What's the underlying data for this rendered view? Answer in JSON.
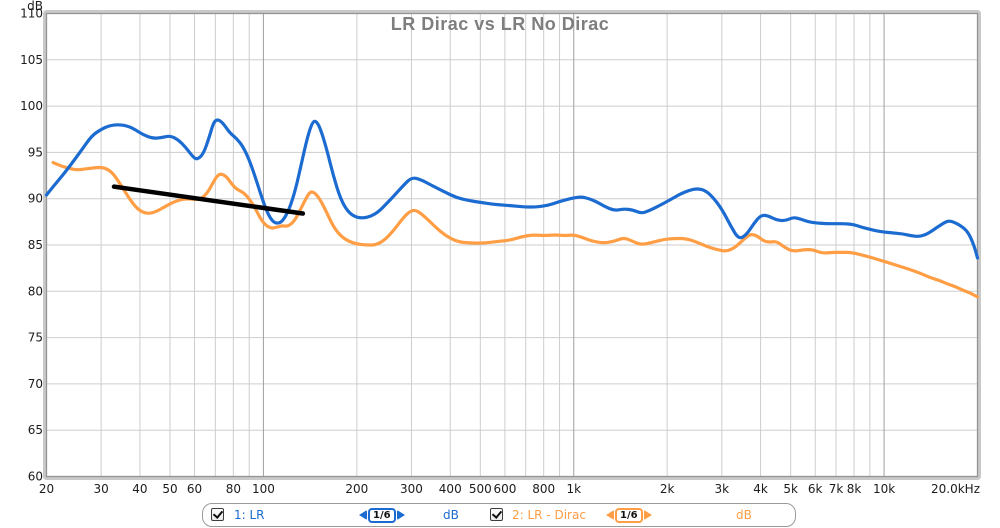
{
  "title": "LR Dirac vs LR No Dirac",
  "legend": {
    "items": [
      {
        "label": "1: LR",
        "smoothing": "1/6",
        "unit": "dB",
        "color": "#1B6BD0",
        "checked": true
      },
      {
        "label": "2: LR - Dirac",
        "smoothing": "1/6",
        "unit": "dB",
        "color": "#FF9E45",
        "checked": true
      }
    ]
  },
  "chart_data": {
    "type": "line",
    "title": "LR Dirac vs LR No Dirac",
    "x_scale": "log",
    "x_range": [
      20,
      20000
    ],
    "y_range": [
      60,
      110
    ],
    "y_unit_label": "dB",
    "grid": true,
    "legend_position": "bottom",
    "x_ticks": [
      {
        "f": 20,
        "label": "20"
      },
      {
        "f": 30,
        "label": "30"
      },
      {
        "f": 40,
        "label": "40"
      },
      {
        "f": 50,
        "label": "50"
      },
      {
        "f": 60,
        "label": "60"
      },
      {
        "f": 70,
        "label": ""
      },
      {
        "f": 80,
        "label": "80"
      },
      {
        "f": 90,
        "label": ""
      },
      {
        "f": 100,
        "label": "100",
        "major": true
      },
      {
        "f": 200,
        "label": "200"
      },
      {
        "f": 300,
        "label": "300"
      },
      {
        "f": 400,
        "label": "400"
      },
      {
        "f": 500,
        "label": "500"
      },
      {
        "f": 600,
        "label": "600"
      },
      {
        "f": 700,
        "label": ""
      },
      {
        "f": 800,
        "label": "800"
      },
      {
        "f": 900,
        "label": ""
      },
      {
        "f": 1000,
        "label": "1k",
        "major": true
      },
      {
        "f": 2000,
        "label": "2k"
      },
      {
        "f": 3000,
        "label": "3k"
      },
      {
        "f": 4000,
        "label": "4k"
      },
      {
        "f": 5000,
        "label": "5k"
      },
      {
        "f": 6000,
        "label": "6k"
      },
      {
        "f": 7000,
        "label": "7k"
      },
      {
        "f": 8000,
        "label": "8k"
      },
      {
        "f": 9000,
        "label": ""
      },
      {
        "f": 10000,
        "label": "10k",
        "major": true
      },
      {
        "f": 20000,
        "label": "20.0kHz"
      }
    ],
    "y_ticks": [
      {
        "v": 110,
        "label": "110"
      },
      {
        "v": 105,
        "label": "105"
      },
      {
        "v": 100,
        "label": "100"
      },
      {
        "v": 95,
        "label": "95"
      },
      {
        "v": 90,
        "label": "90"
      },
      {
        "v": 85,
        "label": "85"
      },
      {
        "v": 80,
        "label": "80"
      },
      {
        "v": 75,
        "label": "75"
      },
      {
        "v": 70,
        "label": "70"
      },
      {
        "v": 65,
        "label": "65"
      },
      {
        "v": 60,
        "label": "60"
      }
    ],
    "series": [
      {
        "name": "1: LR",
        "color": "#1B6BD0",
        "width": 3.2,
        "points": [
          [
            20,
            90.4
          ],
          [
            21,
            91.3
          ],
          [
            22.5,
            92.5
          ],
          [
            24,
            93.7
          ],
          [
            26,
            95.3
          ],
          [
            28,
            96.8
          ],
          [
            30,
            97.5
          ],
          [
            32,
            97.9
          ],
          [
            34,
            98.0
          ],
          [
            36,
            97.9
          ],
          [
            38,
            97.6
          ],
          [
            41,
            96.9
          ],
          [
            44,
            96.5
          ],
          [
            47,
            96.6
          ],
          [
            50,
            96.8
          ],
          [
            53,
            96.4
          ],
          [
            56,
            95.6
          ],
          [
            59,
            94.6
          ],
          [
            61,
            94.2
          ],
          [
            64,
            94.8
          ],
          [
            67,
            96.7
          ],
          [
            69,
            98.2
          ],
          [
            71,
            98.6
          ],
          [
            74,
            98.2
          ],
          [
            78,
            97.1
          ],
          [
            82,
            96.5
          ],
          [
            86,
            95.6
          ],
          [
            90,
            94.2
          ],
          [
            94,
            92.4
          ],
          [
            98,
            90.5
          ],
          [
            102,
            88.8
          ],
          [
            106,
            87.7
          ],
          [
            110,
            87.3
          ],
          [
            115,
            87.5
          ],
          [
            121,
            88.8
          ],
          [
            127,
            91.0
          ],
          [
            133,
            94.0
          ],
          [
            139,
            96.8
          ],
          [
            144,
            98.3
          ],
          [
            148,
            98.4
          ],
          [
            153,
            97.5
          ],
          [
            160,
            95.3
          ],
          [
            168,
            92.5
          ],
          [
            177,
            90.0
          ],
          [
            187,
            88.6
          ],
          [
            198,
            88.0
          ],
          [
            210,
            87.9
          ],
          [
            222,
            88.1
          ],
          [
            235,
            88.6
          ],
          [
            250,
            89.5
          ],
          [
            265,
            90.4
          ],
          [
            282,
            91.4
          ],
          [
            300,
            92.3
          ],
          [
            320,
            92.1
          ],
          [
            350,
            91.4
          ],
          [
            385,
            90.7
          ],
          [
            420,
            90.1
          ],
          [
            460,
            89.8
          ],
          [
            500,
            89.6
          ],
          [
            550,
            89.4
          ],
          [
            600,
            89.3
          ],
          [
            650,
            89.2
          ],
          [
            700,
            89.1
          ],
          [
            750,
            89.1
          ],
          [
            800,
            89.2
          ],
          [
            850,
            89.4
          ],
          [
            900,
            89.7
          ],
          [
            950,
            89.9
          ],
          [
            1000,
            90.1
          ],
          [
            1060,
            90.2
          ],
          [
            1120,
            90.0
          ],
          [
            1180,
            89.7
          ],
          [
            1250,
            89.2
          ],
          [
            1350,
            88.7
          ],
          [
            1450,
            88.9
          ],
          [
            1550,
            88.8
          ],
          [
            1650,
            88.4
          ],
          [
            1750,
            88.7
          ],
          [
            1900,
            89.3
          ],
          [
            2050,
            89.9
          ],
          [
            2200,
            90.5
          ],
          [
            2350,
            90.9
          ],
          [
            2500,
            91.1
          ],
          [
            2650,
            90.9
          ],
          [
            2800,
            90.2
          ],
          [
            3000,
            88.9
          ],
          [
            3200,
            87.1
          ],
          [
            3400,
            85.6
          ],
          [
            3600,
            86.1
          ],
          [
            3800,
            87.3
          ],
          [
            4000,
            88.2
          ],
          [
            4200,
            88.2
          ],
          [
            4500,
            87.7
          ],
          [
            4800,
            87.6
          ],
          [
            5100,
            88.0
          ],
          [
            5400,
            87.8
          ],
          [
            5700,
            87.5
          ],
          [
            6000,
            87.4
          ],
          [
            6500,
            87.3
          ],
          [
            7000,
            87.3
          ],
          [
            7500,
            87.3
          ],
          [
            8000,
            87.2
          ],
          [
            8500,
            86.9
          ],
          [
            9000,
            86.7
          ],
          [
            9500,
            86.5
          ],
          [
            10000,
            86.4
          ],
          [
            10700,
            86.3
          ],
          [
            11500,
            86.2
          ],
          [
            12200,
            86.0
          ],
          [
            13000,
            85.9
          ],
          [
            13800,
            86.2
          ],
          [
            14800,
            86.9
          ],
          [
            15800,
            87.5
          ],
          [
            16300,
            87.6
          ],
          [
            17000,
            87.4
          ],
          [
            18000,
            86.9
          ],
          [
            18700,
            86.3
          ],
          [
            19300,
            85.3
          ],
          [
            19700,
            84.4
          ],
          [
            20000,
            83.6
          ]
        ]
      },
      {
        "name": "2: LR - Dirac",
        "color": "#FF9E45",
        "width": 3.2,
        "points": [
          [
            21,
            93.9
          ],
          [
            22,
            93.6
          ],
          [
            23.5,
            93.3
          ],
          [
            25,
            93.1
          ],
          [
            26.5,
            93.2
          ],
          [
            28,
            93.3
          ],
          [
            30,
            93.4
          ],
          [
            31.5,
            93.2
          ],
          [
            33,
            92.6
          ],
          [
            35,
            91.3
          ],
          [
            37,
            90.0
          ],
          [
            39,
            89.0
          ],
          [
            41,
            88.5
          ],
          [
            43,
            88.4
          ],
          [
            45,
            88.6
          ],
          [
            48,
            89.1
          ],
          [
            51,
            89.6
          ],
          [
            54,
            89.9
          ],
          [
            57,
            90.0
          ],
          [
            60,
            89.9
          ],
          [
            63,
            90.0
          ],
          [
            66,
            90.6
          ],
          [
            69,
            91.8
          ],
          [
            71,
            92.5
          ],
          [
            73,
            92.7
          ],
          [
            76,
            92.4
          ],
          [
            79,
            91.6
          ],
          [
            82,
            91.0
          ],
          [
            86,
            90.7
          ],
          [
            90,
            90.0
          ],
          [
            94,
            89.0
          ],
          [
            98,
            87.8
          ],
          [
            102,
            87.1
          ],
          [
            106,
            86.8
          ],
          [
            110,
            86.9
          ],
          [
            115,
            87.1
          ],
          [
            120,
            87.0
          ],
          [
            126,
            87.6
          ],
          [
            132,
            88.9
          ],
          [
            138,
            90.2
          ],
          [
            142,
            90.8
          ],
          [
            147,
            90.6
          ],
          [
            153,
            89.8
          ],
          [
            160,
            88.5
          ],
          [
            168,
            87.0
          ],
          [
            177,
            86.0
          ],
          [
            188,
            85.4
          ],
          [
            200,
            85.1
          ],
          [
            215,
            85.0
          ],
          [
            230,
            85.0
          ],
          [
            245,
            85.5
          ],
          [
            262,
            86.5
          ],
          [
            280,
            87.8
          ],
          [
            295,
            88.6
          ],
          [
            308,
            88.8
          ],
          [
            322,
            88.4
          ],
          [
            345,
            87.5
          ],
          [
            370,
            86.5
          ],
          [
            400,
            85.7
          ],
          [
            430,
            85.3
          ],
          [
            470,
            85.2
          ],
          [
            520,
            85.2
          ],
          [
            570,
            85.4
          ],
          [
            620,
            85.5
          ],
          [
            680,
            85.9
          ],
          [
            740,
            86.1
          ],
          [
            800,
            86.0
          ],
          [
            870,
            86.1
          ],
          [
            940,
            86.0
          ],
          [
            1000,
            86.1
          ],
          [
            1070,
            85.8
          ],
          [
            1150,
            85.4
          ],
          [
            1250,
            85.2
          ],
          [
            1350,
            85.4
          ],
          [
            1450,
            85.8
          ],
          [
            1550,
            85.4
          ],
          [
            1650,
            85.0
          ],
          [
            1800,
            85.3
          ],
          [
            1950,
            85.6
          ],
          [
            2100,
            85.7
          ],
          [
            2300,
            85.7
          ],
          [
            2500,
            85.3
          ],
          [
            2700,
            84.8
          ],
          [
            2900,
            84.5
          ],
          [
            3100,
            84.3
          ],
          [
            3300,
            84.7
          ],
          [
            3500,
            85.5
          ],
          [
            3700,
            86.2
          ],
          [
            3900,
            86.0
          ],
          [
            4100,
            85.4
          ],
          [
            4300,
            85.3
          ],
          [
            4500,
            85.4
          ],
          [
            4800,
            84.7
          ],
          [
            5100,
            84.3
          ],
          [
            5500,
            84.5
          ],
          [
            5900,
            84.5
          ],
          [
            6300,
            84.1
          ],
          [
            6800,
            84.2
          ],
          [
            7300,
            84.2
          ],
          [
            7800,
            84.2
          ],
          [
            8300,
            84.0
          ],
          [
            9000,
            83.7
          ],
          [
            9600,
            83.4
          ],
          [
            10300,
            83.1
          ],
          [
            11000,
            82.8
          ],
          [
            12000,
            82.4
          ],
          [
            13000,
            82.0
          ],
          [
            14000,
            81.5
          ],
          [
            15000,
            81.2
          ],
          [
            16000,
            80.8
          ],
          [
            17000,
            80.5
          ],
          [
            18000,
            80.1
          ],
          [
            19000,
            79.8
          ],
          [
            20000,
            79.4
          ]
        ]
      }
    ],
    "annotations": [
      {
        "type": "line",
        "name": "trend-line",
        "color": "#000000",
        "width": 4.5,
        "points": [
          [
            33,
            91.3
          ],
          [
            134,
            88.4
          ]
        ]
      }
    ]
  }
}
